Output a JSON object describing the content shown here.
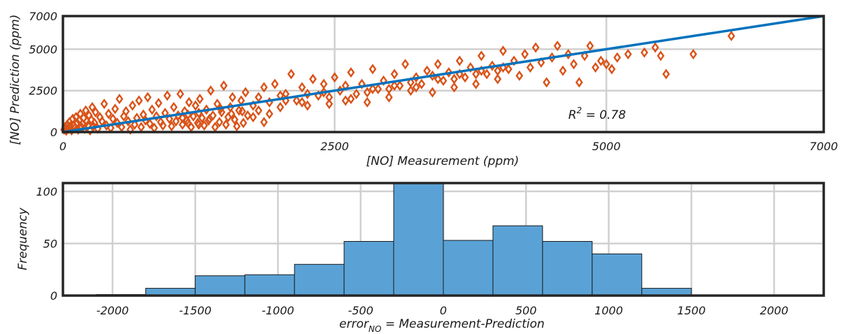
{
  "chart_data": [
    {
      "type": "scatter",
      "xlabel": "[NO] Measurement (ppm)",
      "ylabel": "[NO] Prediction (ppm)",
      "xlim": [
        0,
        7000
      ],
      "ylim": [
        0,
        7000
      ],
      "x_ticks": [
        "0",
        "2500",
        "5000",
        "7000"
      ],
      "y_ticks": [
        "0",
        "2500",
        "5000",
        "7000"
      ],
      "x_tick_values": [
        0,
        2500,
        5000,
        7000
      ],
      "y_tick_values": [
        0,
        2500,
        5000,
        7000
      ],
      "grid": true,
      "annotation": {
        "text_base": "R",
        "text_sup": "2",
        "text_rest": " = 0.78",
        "x": 4650,
        "y": 800
      },
      "fit_line": {
        "x": [
          0,
          7000
        ],
        "y": [
          0,
          7000
        ]
      },
      "colors": {
        "markers": "#d95319",
        "fit_line": "#0072bd",
        "grid": "#d0d0d0",
        "axes": "#262626"
      },
      "marker": "diamond",
      "points": [
        [
          10,
          150
        ],
        [
          20,
          300
        ],
        [
          30,
          80
        ],
        [
          40,
          450
        ],
        [
          50,
          200
        ],
        [
          60,
          600
        ],
        [
          70,
          350
        ],
        [
          80,
          100
        ],
        [
          90,
          800
        ],
        [
          100,
          400
        ],
        [
          110,
          250
        ],
        [
          120,
          900
        ],
        [
          130,
          550
        ],
        [
          140,
          150
        ],
        [
          150,
          700
        ],
        [
          160,
          1100
        ],
        [
          170,
          300
        ],
        [
          180,
          500
        ],
        [
          190,
          850
        ],
        [
          200,
          200
        ],
        [
          210,
          1300
        ],
        [
          220,
          650
        ],
        [
          230,
          400
        ],
        [
          240,
          1000
        ],
        [
          250,
          100
        ],
        [
          260,
          750
        ],
        [
          270,
          1500
        ],
        [
          280,
          350
        ],
        [
          290,
          550
        ],
        [
          300,
          1200
        ],
        [
          320,
          200
        ],
        [
          340,
          900
        ],
        [
          360,
          650
        ],
        [
          380,
          1700
        ],
        [
          400,
          400
        ],
        [
          420,
          1100
        ],
        [
          440,
          250
        ],
        [
          460,
          800
        ],
        [
          480,
          1400
        ],
        [
          500,
          550
        ],
        [
          520,
          2000
        ],
        [
          540,
          300
        ],
        [
          560,
          950
        ],
        [
          580,
          1250
        ],
        [
          600,
          650
        ],
        [
          620,
          150
        ],
        [
          640,
          1600
        ],
        [
          660,
          450
        ],
        [
          680,
          850
        ],
        [
          700,
          1900
        ],
        [
          720,
          300
        ],
        [
          740,
          1050
        ],
        [
          760,
          700
        ],
        [
          780,
          2100
        ],
        [
          800,
          500
        ],
        [
          820,
          1350
        ],
        [
          840,
          250
        ],
        [
          860,
          950
        ],
        [
          880,
          1750
        ],
        [
          900,
          600
        ],
        [
          920,
          400
        ],
        [
          940,
          1150
        ],
        [
          960,
          2200
        ],
        [
          980,
          800
        ],
        [
          1000,
          350
        ],
        [
          1020,
          1500
        ],
        [
          1040,
          650
        ],
        [
          1060,
          1000
        ],
        [
          1080,
          2300
        ],
        [
          1100,
          450
        ],
        [
          1120,
          1250
        ],
        [
          1140,
          700
        ],
        [
          1160,
          1800
        ],
        [
          1180,
          300
        ],
        [
          1200,
          950
        ],
        [
          1220,
          1600
        ],
        [
          1240,
          550
        ],
        [
          1260,
          2000
        ],
        [
          1280,
          850
        ],
        [
          1300,
          400
        ],
        [
          1320,
          1350
        ],
        [
          1340,
          700
        ],
        [
          1360,
          2500
        ],
        [
          1380,
          1000
        ],
        [
          1400,
          300
        ],
        [
          1420,
          1700
        ],
        [
          1440,
          600
        ],
        [
          1460,
          1200
        ],
        [
          1480,
          2800
        ],
        [
          1500,
          450
        ],
        [
          1520,
          900
        ],
        [
          1540,
          1500
        ],
        [
          1560,
          2100
        ],
        [
          1580,
          750
        ],
        [
          1600,
          350
        ],
        [
          1620,
          1300
        ],
        [
          1640,
          1900
        ],
        [
          1660,
          550
        ],
        [
          1680,
          2400
        ],
        [
          1700,
          1000
        ],
        [
          1100,
          850
        ],
        [
          1150,
          1050
        ],
        [
          1250,
          1150
        ],
        [
          1350,
          800
        ],
        [
          1450,
          1400
        ],
        [
          1550,
          1100
        ],
        [
          1650,
          1250
        ],
        [
          1750,
          900
        ],
        [
          1150,
          550
        ],
        [
          1250,
          450
        ],
        [
          1750,
          1600
        ],
        [
          1800,
          2100
        ],
        [
          1850,
          2700
        ],
        [
          1900,
          1800
        ],
        [
          1950,
          2900
        ],
        [
          2000,
          1500
        ],
        [
          2050,
          2300
        ],
        [
          2100,
          3500
        ],
        [
          2150,
          1900
        ],
        [
          2200,
          2700
        ],
        [
          2250,
          1600
        ],
        [
          2300,
          3200
        ],
        [
          2350,
          2200
        ],
        [
          2400,
          2900
        ],
        [
          2450,
          1700
        ],
        [
          2500,
          3300
        ],
        [
          2550,
          2500
        ],
        [
          2600,
          1900
        ],
        [
          2650,
          3600
        ],
        [
          2700,
          2300
        ],
        [
          2750,
          2900
        ],
        [
          2800,
          1800
        ],
        [
          2850,
          3800
        ],
        [
          2900,
          2600
        ],
        [
          2950,
          3100
        ],
        [
          3000,
          2100
        ],
        [
          3050,
          3500
        ],
        [
          3100,
          2800
        ],
        [
          3150,
          4100
        ],
        [
          3200,
          2500
        ],
        [
          3250,
          3300
        ],
        [
          3300,
          2900
        ],
        [
          3350,
          3700
        ],
        [
          3400,
          2400
        ],
        [
          3450,
          4100
        ],
        [
          3500,
          3100
        ],
        [
          3550,
          3600
        ],
        [
          3600,
          2700
        ],
        [
          3650,
          4300
        ],
        [
          3700,
          3300
        ],
        [
          3750,
          3900
        ],
        [
          3800,
          2900
        ],
        [
          3850,
          4600
        ],
        [
          3900,
          3500
        ],
        [
          3950,
          4000
        ],
        [
          4000,
          3200
        ],
        [
          4050,
          4900
        ],
        [
          4100,
          3800
        ],
        [
          4150,
          4300
        ],
        [
          4200,
          3400
        ],
        [
          4250,
          4700
        ],
        [
          4300,
          3900
        ],
        [
          4350,
          5100
        ],
        [
          4400,
          4200
        ],
        [
          4450,
          3000
        ],
        [
          4500,
          4500
        ],
        [
          4550,
          5200
        ],
        [
          4600,
          3700
        ],
        [
          4650,
          4700
        ],
        [
          4700,
          4100
        ],
        [
          4750,
          3000
        ],
        [
          4800,
          4600
        ],
        [
          4850,
          5200
        ],
        [
          4900,
          3900
        ],
        [
          4950,
          4300
        ],
        [
          5000,
          4100
        ],
        [
          5050,
          3800
        ],
        [
          5100,
          4500
        ],
        [
          5200,
          4700
        ],
        [
          5350,
          4800
        ],
        [
          5450,
          5100
        ],
        [
          5500,
          4600
        ],
        [
          5550,
          3500
        ],
        [
          5800,
          4700
        ],
        [
          6150,
          5800
        ],
        [
          1800,
          1300
        ],
        [
          2000,
          2200
        ],
        [
          2200,
          1800
        ],
        [
          2400,
          2400
        ],
        [
          2600,
          2800
        ],
        [
          2800,
          2400
        ],
        [
          3000,
          2600
        ],
        [
          3200,
          3000
        ],
        [
          3400,
          3400
        ],
        [
          3600,
          3200
        ],
        [
          3800,
          3500
        ],
        [
          4000,
          3700
        ],
        [
          1850,
          600
        ],
        [
          1900,
          1100
        ],
        [
          2050,
          1900
        ],
        [
          2250,
          2300
        ],
        [
          2450,
          2100
        ],
        [
          2650,
          2000
        ],
        [
          2850,
          2600
        ],
        [
          3050,
          2800
        ],
        [
          3250,
          2700
        ],
        [
          3450,
          3200
        ],
        [
          3650,
          3500
        ],
        [
          3850,
          3700
        ],
        [
          4050,
          3900
        ]
      ]
    },
    {
      "type": "bar",
      "xlabel_parts": {
        "base": "error",
        "sub": "NO",
        "rest": " = Measurement-Prediction"
      },
      "ylabel": "Frequency",
      "xlim": [
        -2300,
        2300
      ],
      "ylim": [
        0,
        108
      ],
      "x_ticks": [
        "-2000",
        "-1500",
        "-1000",
        "-500",
        "0",
        "500",
        "1000",
        "1500",
        "2000"
      ],
      "y_ticks": [
        "0",
        "50",
        "100"
      ],
      "x_tick_values": [
        -2000,
        -1500,
        -1000,
        -500,
        0,
        500,
        1000,
        1500,
        2000
      ],
      "y_tick_values": [
        0,
        50,
        100
      ],
      "grid": true,
      "colors": {
        "bars": "#5aa2d6",
        "grid": "#d0d0d0",
        "axes": "#262626"
      },
      "bins": [
        {
          "from": -2100,
          "to": -1800,
          "value": 1
        },
        {
          "from": -1800,
          "to": -1500,
          "value": 7
        },
        {
          "from": -1500,
          "to": -1200,
          "value": 19
        },
        {
          "from": -1200,
          "to": -900,
          "value": 20
        },
        {
          "from": -900,
          "to": -600,
          "value": 30
        },
        {
          "from": -600,
          "to": -300,
          "value": 52
        },
        {
          "from": -300,
          "to": 0,
          "value": 108
        },
        {
          "from": 0,
          "to": 300,
          "value": 53
        },
        {
          "from": 300,
          "to": 600,
          "value": 67
        },
        {
          "from": 600,
          "to": 900,
          "value": 52
        },
        {
          "from": 900,
          "to": 1200,
          "value": 40
        },
        {
          "from": 1200,
          "to": 1500,
          "value": 7
        },
        {
          "from": 1500,
          "to": 1800,
          "value": 0
        },
        {
          "from": 1800,
          "to": 2100,
          "value": 0
        }
      ]
    }
  ]
}
